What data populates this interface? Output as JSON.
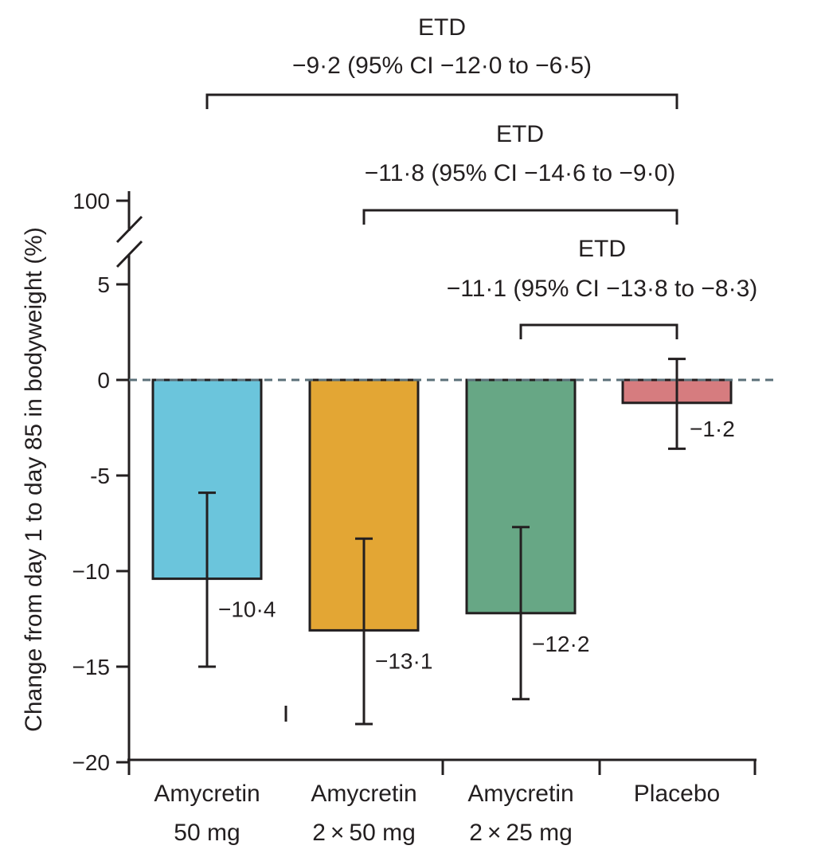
{
  "chart_data": {
    "type": "bar",
    "title": "",
    "xlabel": "",
    "ylabel": "Change from day 1 to day 85 in bodyweight (%)",
    "ylim": [
      -20,
      5
    ],
    "y_break_tick": "100",
    "yticks": [
      {
        "value": 5,
        "label": "5"
      },
      {
        "value": 0,
        "label": "0"
      },
      {
        "value": -5,
        "label": "-5"
      },
      {
        "value": -10,
        "label": "−10"
      },
      {
        "value": -15,
        "label": "−15"
      },
      {
        "value": -20,
        "label": "−20"
      }
    ],
    "categories": [
      {
        "line1": "Amycretin",
        "line2": "50 mg"
      },
      {
        "line1": "Amycretin",
        "line2": "2 × 50 mg"
      },
      {
        "line1": "Amycretin",
        "line2": "2 × 25 mg"
      },
      {
        "line1": "Placebo",
        "line2": ""
      }
    ],
    "values": [
      -10.4,
      -13.1,
      -12.2,
      -1.2
    ],
    "value_labels": [
      "−10·4",
      "−13·1",
      "−12·2",
      "−1·2"
    ],
    "error_low": [
      -15.0,
      -18.0,
      -16.7,
      -3.6
    ],
    "error_high": [
      -5.9,
      -8.3,
      -7.7,
      1.1
    ],
    "colors": [
      "#6bc5dc",
      "#e3a634",
      "#67a785",
      "#d67c7f"
    ],
    "annotations": [
      {
        "heading": "ETD",
        "text": "−9·2 (95% CI −12·0 to −6·5)",
        "from": 0,
        "to": 3
      },
      {
        "heading": "ETD",
        "text": "−11·8 (95% CI −14·6 to −9·0)",
        "from": 1,
        "to": 3
      },
      {
        "heading": "ETD",
        "text": "−11·1 (95% CI −13·8 to −8·3)",
        "from": 2,
        "to": 3
      }
    ]
  }
}
